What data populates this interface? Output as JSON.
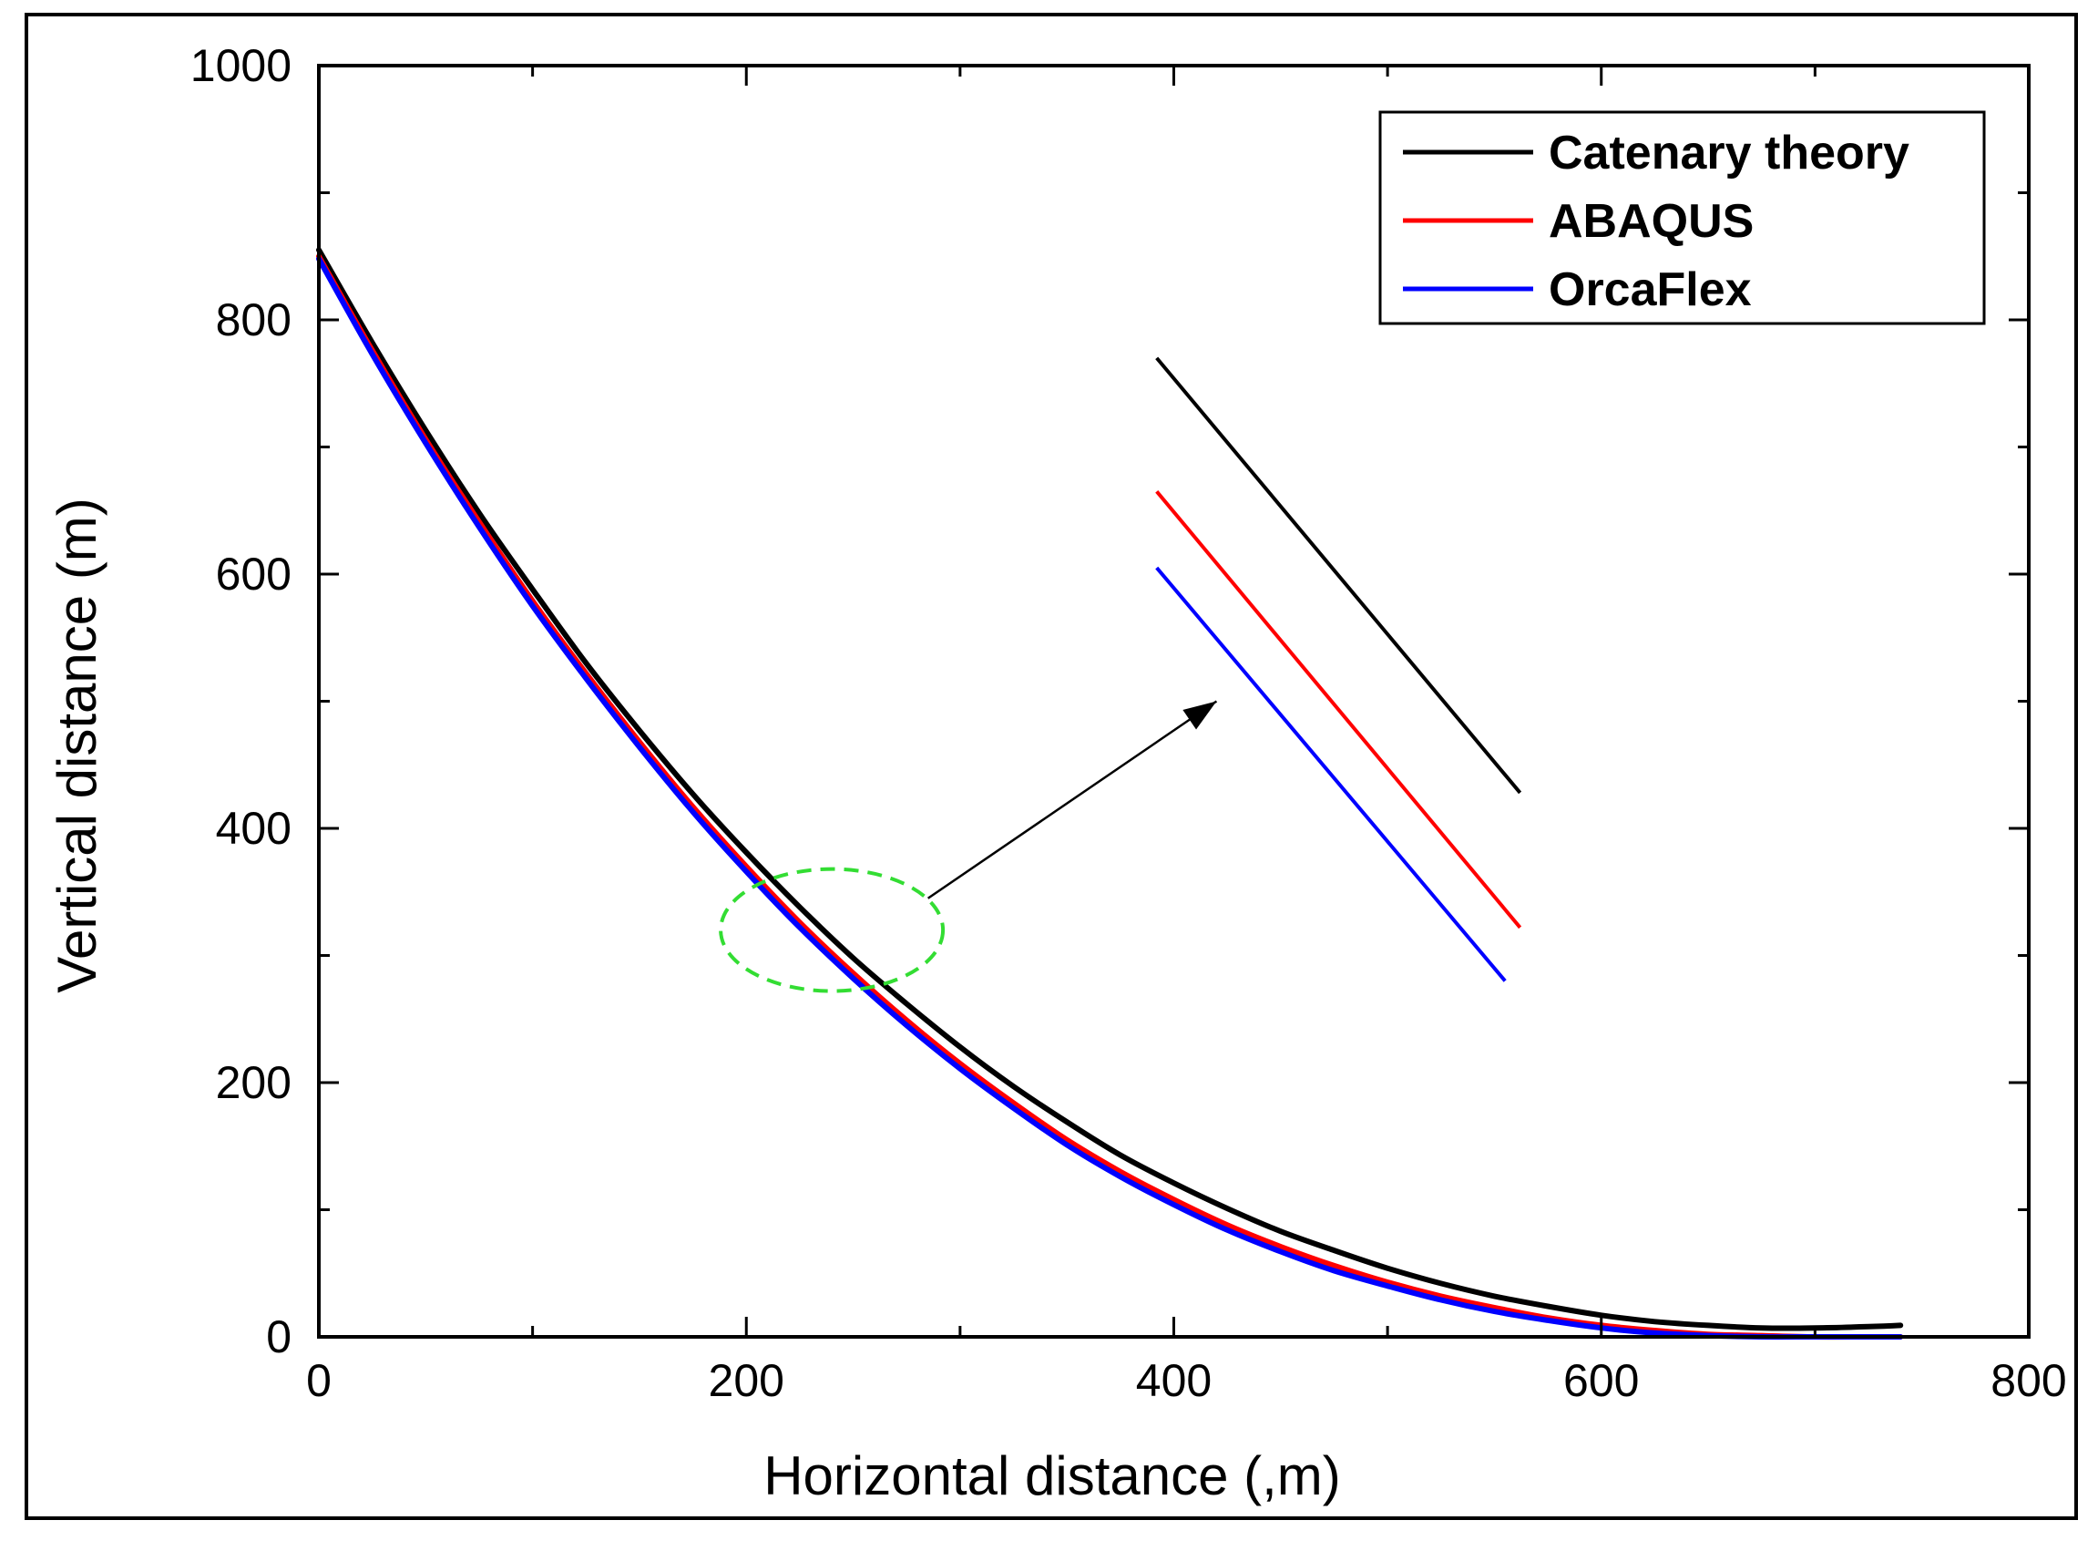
{
  "chart_data": {
    "type": "line",
    "title": "",
    "xlabel": "Horizontal distance (,m)",
    "ylabel": "Vertical distance (m)",
    "xlim": [
      0,
      800
    ],
    "ylim": [
      0,
      1000
    ],
    "xticks": [
      0,
      200,
      400,
      600,
      800
    ],
    "yticks": [
      0,
      200,
      400,
      600,
      800,
      1000
    ],
    "xtick_labels": [
      "0",
      "200",
      "400",
      "600",
      "800"
    ],
    "ytick_labels": [
      "0",
      "200",
      "400",
      "600",
      "800",
      "1000"
    ],
    "minor_xticks": [
      100,
      300,
      500,
      700
    ],
    "minor_yticks": [
      100,
      300,
      500,
      700,
      900
    ],
    "grid": false,
    "legend_position": "top-right",
    "series": [
      {
        "name": "Catenary theory",
        "color": "#000000",
        "x": [
          0,
          25,
          50,
          75,
          100,
          125,
          150,
          175,
          200,
          225,
          250,
          275,
          300,
          325,
          350,
          375,
          400,
          425,
          450,
          475,
          500,
          525,
          550,
          575,
          600,
          625,
          650,
          675,
          700,
          725,
          740
        ],
        "y": [
          855,
          782,
          713,
          648,
          588,
          530,
          477,
          427,
          381,
          338,
          298,
          262,
          228,
          197,
          169,
          143,
          121,
          101,
          83,
          68,
          54,
          42,
          32,
          24,
          17,
          12,
          9,
          7,
          7,
          8,
          9
        ]
      },
      {
        "name": "ABAQUS",
        "color": "#ff0000",
        "x": [
          0,
          25,
          50,
          75,
          100,
          125,
          150,
          175,
          200,
          225,
          250,
          275,
          300,
          325,
          350,
          375,
          400,
          425,
          450,
          475,
          500,
          525,
          550,
          575,
          600,
          625,
          650,
          675,
          700,
          725,
          740
        ],
        "y": [
          850,
          776,
          706,
          641,
          579,
          522,
          468,
          417,
          370,
          326,
          286,
          249,
          215,
          184,
          155,
          130,
          108,
          88,
          71,
          56,
          43,
          32,
          23,
          15,
          9,
          5,
          2,
          1,
          0,
          0,
          0
        ]
      },
      {
        "name": "OrcaFlex",
        "color": "#0000ff",
        "x": [
          0,
          25,
          50,
          75,
          100,
          125,
          150,
          175,
          200,
          225,
          250,
          275,
          300,
          325,
          350,
          375,
          400,
          425,
          450,
          475,
          500,
          525,
          550,
          575,
          600,
          625,
          650,
          675,
          700,
          725,
          740
        ],
        "y": [
          848,
          773,
          703,
          637,
          575,
          518,
          464,
          413,
          366,
          322,
          282,
          245,
          211,
          180,
          151,
          126,
          104,
          84,
          67,
          52,
          40,
          29,
          20,
          13,
          7,
          3,
          1,
          0,
          0,
          0,
          0
        ]
      }
    ],
    "inset": {
      "description_lines": [
        {
          "series": "Catenary theory",
          "color": "#000000",
          "x": [
            392,
            562
          ],
          "y": [
            770,
            428
          ]
        },
        {
          "series": "ABAQUS",
          "color": "#ff0000",
          "x": [
            392,
            562
          ],
          "y": [
            665,
            322
          ]
        },
        {
          "series": "OrcaFlex",
          "color": "#0000ff",
          "x": [
            392,
            555
          ],
          "y": [
            605,
            280
          ]
        }
      ],
      "highlight_ellipse": {
        "cx": 240,
        "cy": 320,
        "rx": 52,
        "ry": 48,
        "color": "#33dd33"
      },
      "arrow": {
        "from": [
          285,
          345
        ],
        "to": [
          420,
          500
        ]
      }
    }
  }
}
